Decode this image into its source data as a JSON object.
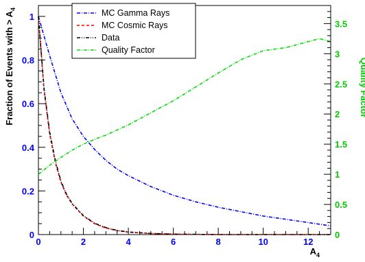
{
  "chart_data": {
    "type": "line",
    "xlabel": "A",
    "xlabel_sub": "4",
    "ylabel": "Fraction of Events with > A",
    "ylabel_sub": "4",
    "y2label": "Quality Factor",
    "xlim": [
      0,
      13
    ],
    "ylim": [
      0,
      1.05
    ],
    "y2lim": [
      0,
      3.8
    ],
    "x_ticks": [
      "0",
      "2",
      "4",
      "6",
      "8",
      "10",
      "12"
    ],
    "y_ticks": [
      "0",
      "0.2",
      "0.4",
      "0.6",
      "0.8",
      "1"
    ],
    "y2_ticks": [
      "0",
      "0.5",
      "1",
      "1.5",
      "2",
      "2.5",
      "3",
      "3.5"
    ],
    "grid": false,
    "legend_position": "top-center",
    "colors": {
      "axis_left": "#0000ff",
      "axis_right": "#00cc00",
      "gamma": "#0000ff",
      "cosmic": "#ff0000",
      "data": "#000000",
      "quality": "#00dd00"
    },
    "series": [
      {
        "name": "MC Gamma Rays",
        "axis": "left",
        "color": "#0000ff",
        "dash": "dashdot",
        "x": [
          0,
          0.5,
          1,
          1.5,
          2,
          2.5,
          3,
          3.5,
          4,
          5,
          6,
          7,
          8,
          9,
          10,
          11,
          12,
          13
        ],
        "y": [
          1.0,
          0.82,
          0.65,
          0.53,
          0.45,
          0.39,
          0.34,
          0.3,
          0.27,
          0.22,
          0.18,
          0.15,
          0.125,
          0.105,
          0.085,
          0.07,
          0.055,
          0.04
        ]
      },
      {
        "name": "MC Cosmic Rays",
        "axis": "left",
        "color": "#ff0000",
        "dash": "dashed",
        "x": [
          0,
          0.25,
          0.5,
          0.75,
          1,
          1.25,
          1.5,
          2,
          2.5,
          3,
          3.5,
          4,
          5,
          6,
          7,
          8,
          9,
          10,
          13
        ],
        "y": [
          1.0,
          0.66,
          0.46,
          0.33,
          0.24,
          0.18,
          0.14,
          0.085,
          0.05,
          0.03,
          0.018,
          0.011,
          0.005,
          0.002,
          0.001,
          0,
          0,
          0,
          0
        ]
      },
      {
        "name": "Data",
        "axis": "left",
        "color": "#000000",
        "dash": "dashdotdot",
        "x": [
          0,
          0.25,
          0.5,
          0.75,
          1,
          1.25,
          1.5,
          2,
          2.5,
          3,
          3.5,
          4,
          5,
          6,
          7,
          8,
          9,
          10,
          13
        ],
        "y": [
          1.0,
          0.67,
          0.47,
          0.34,
          0.245,
          0.185,
          0.142,
          0.087,
          0.052,
          0.032,
          0.019,
          0.012,
          0.005,
          0.002,
          0.001,
          0,
          0,
          0,
          0
        ]
      },
      {
        "name": "Quality Factor",
        "axis": "right",
        "color": "#00dd00",
        "dash": "dashdot",
        "x": [
          0,
          0.5,
          1,
          1.5,
          2,
          2.5,
          3,
          4,
          5,
          6,
          7,
          8,
          9,
          10,
          11,
          12,
          12.5,
          13
        ],
        "y": [
          1.0,
          1.15,
          1.28,
          1.4,
          1.5,
          1.58,
          1.65,
          1.82,
          2.02,
          2.22,
          2.45,
          2.68,
          2.9,
          3.05,
          3.1,
          3.2,
          3.25,
          3.2
        ]
      }
    ]
  }
}
